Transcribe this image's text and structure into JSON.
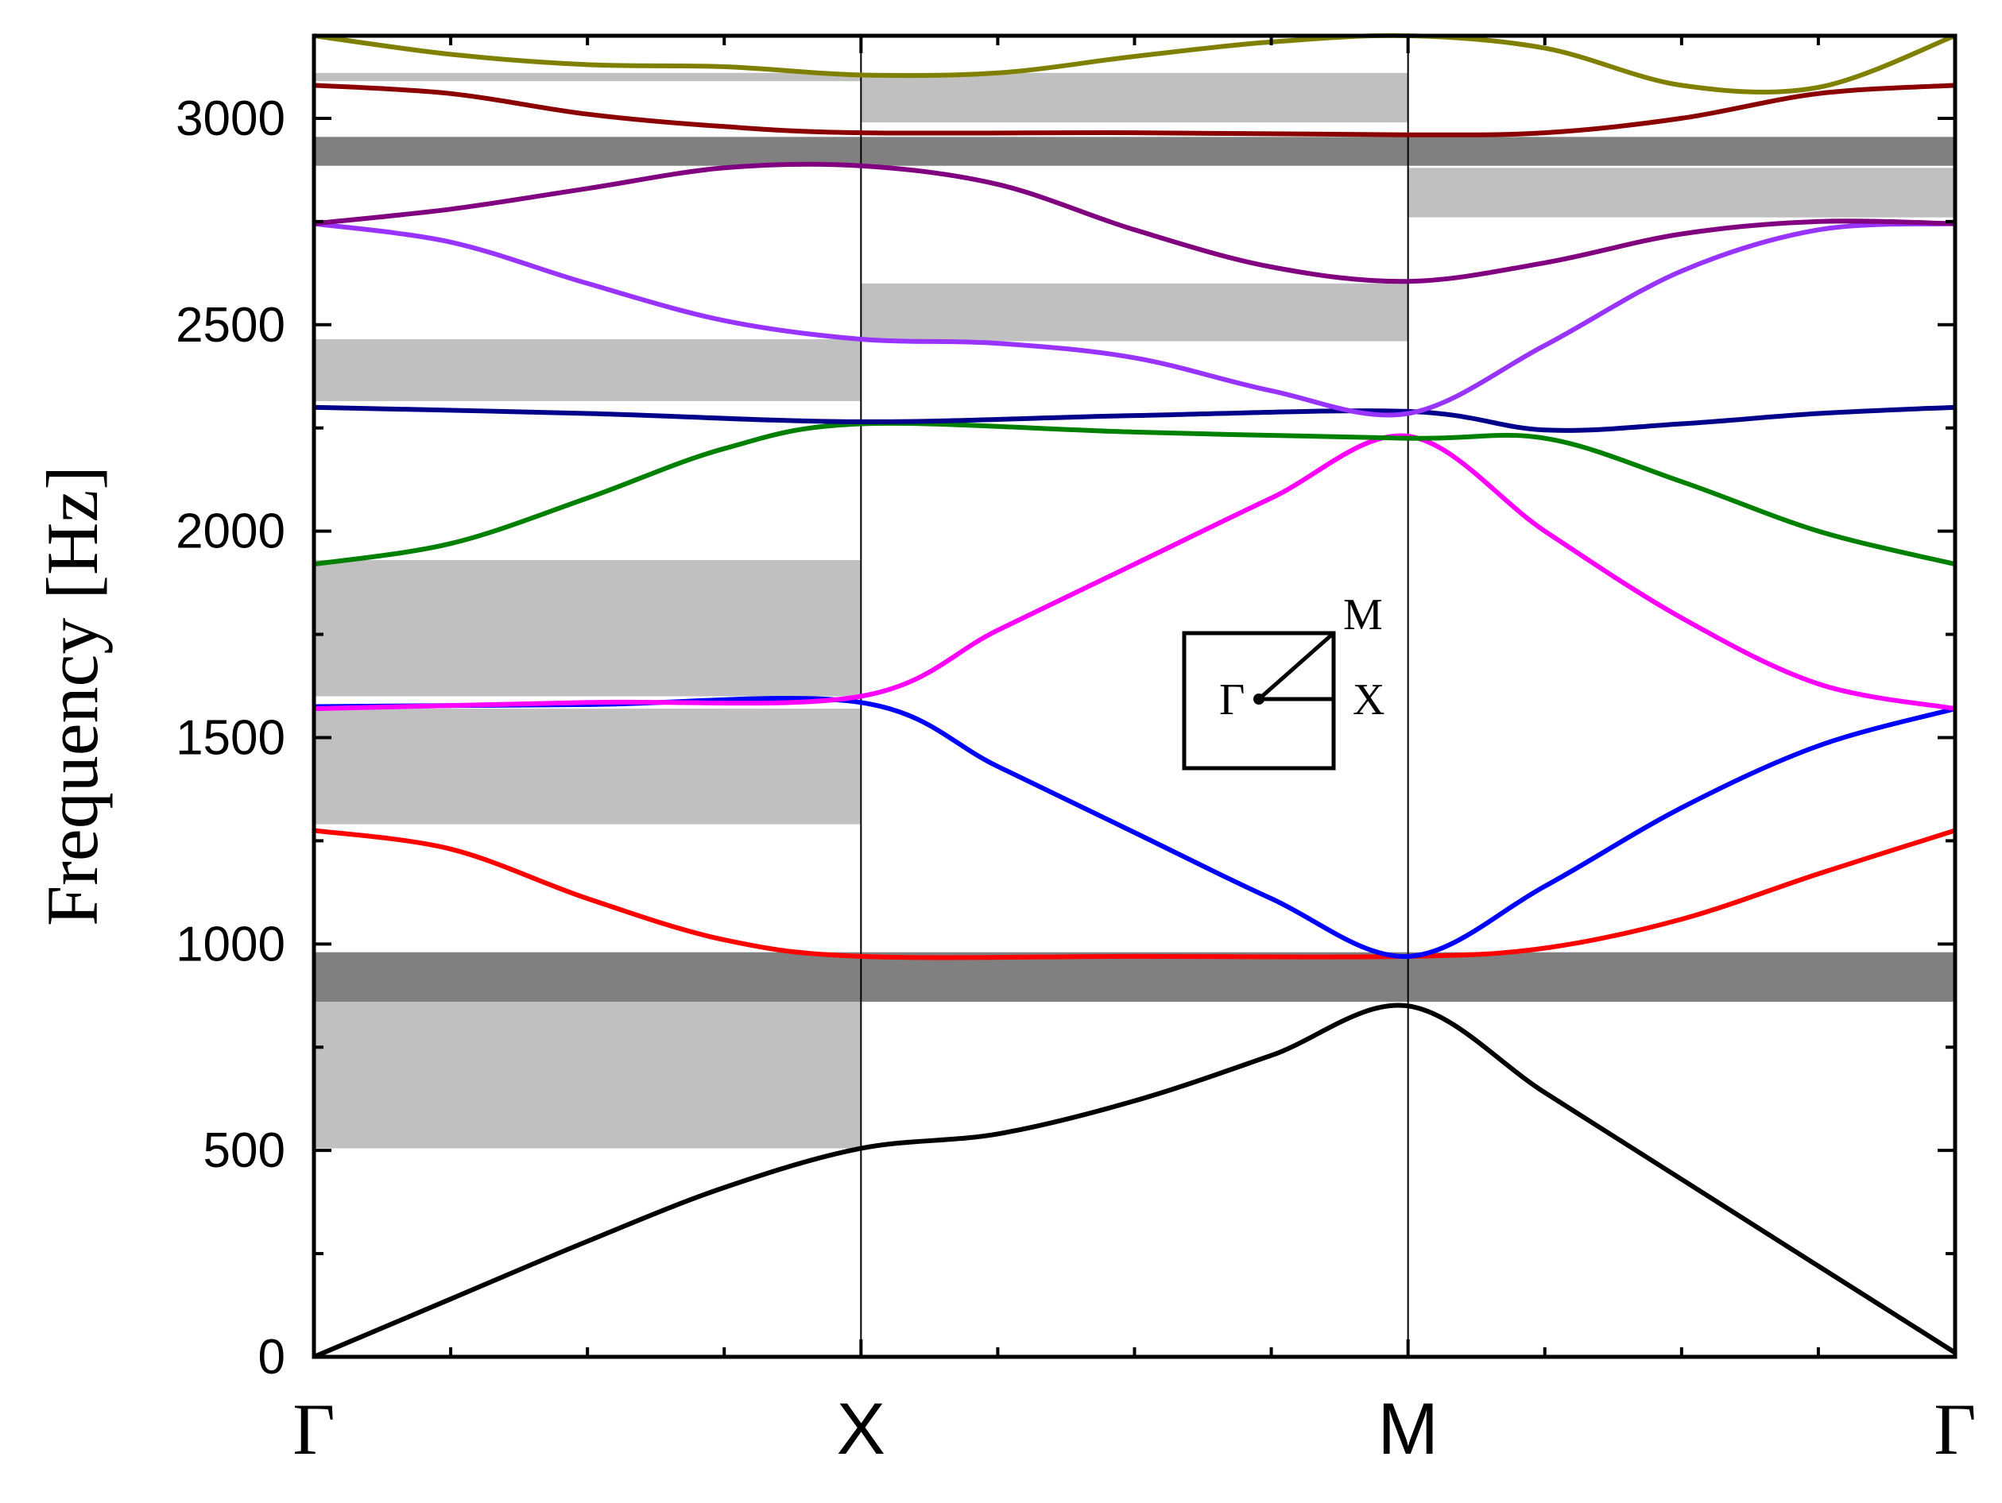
{
  "chart_data": {
    "type": "line",
    "title": "",
    "xlabel": "",
    "ylabel": "Frequency [Hz]",
    "ylim": [
      0,
      3200
    ],
    "yticks": [
      0,
      500,
      1000,
      1500,
      2000,
      2500,
      3000
    ],
    "ytick_labels": [
      "0",
      "500",
      "1000",
      "1500",
      "2000",
      "2500",
      "3000"
    ],
    "x_points": [
      "Γ",
      "X",
      "M",
      "Γ"
    ],
    "xlim": [
      0,
      3
    ],
    "grid": false,
    "legend": "none",
    "band_gaps": [
      {
        "name": "light",
        "x": [
          0,
          1
        ],
        "y": [
          505,
          860
        ],
        "color": "#c0c0c0"
      },
      {
        "name": "light",
        "x": [
          0,
          1
        ],
        "y": [
          1290,
          1570
        ],
        "color": "#c0c0c0"
      },
      {
        "name": "light",
        "x": [
          0,
          1
        ],
        "y": [
          1600,
          1930
        ],
        "color": "#c0c0c0"
      },
      {
        "name": "light",
        "x": [
          0,
          1
        ],
        "y": [
          2315,
          2465
        ],
        "color": "#c0c0c0"
      },
      {
        "name": "light",
        "x": [
          0,
          1
        ],
        "y": [
          3090,
          3110
        ],
        "color": "#c0c0c0"
      },
      {
        "name": "light",
        "x": [
          1,
          2
        ],
        "y": [
          2460,
          2600
        ],
        "color": "#c0c0c0"
      },
      {
        "name": "light",
        "x": [
          1,
          2
        ],
        "y": [
          2990,
          3110
        ],
        "color": "#c0c0c0"
      },
      {
        "name": "light",
        "x": [
          2,
          3
        ],
        "y": [
          2760,
          2880
        ],
        "color": "#c0c0c0"
      },
      {
        "name": "complete",
        "x": [
          0,
          3
        ],
        "y": [
          860,
          980
        ],
        "color": "#808080"
      },
      {
        "name": "complete",
        "x": [
          0,
          3
        ],
        "y": [
          2885,
          2955
        ],
        "color": "#808080"
      }
    ],
    "series": [
      {
        "color": "#000000",
        "x": [
          0,
          0.25,
          0.5,
          0.75,
          1,
          1.25,
          1.5,
          1.75,
          2,
          2.25,
          2.5,
          2.75,
          3
        ],
        "values": [
          0,
          140,
          280,
          410,
          505,
          540,
          620,
          730,
          850,
          640,
          430,
          220,
          10
        ]
      },
      {
        "color": "#ff0000",
        "x": [
          0,
          0.25,
          0.5,
          0.75,
          1,
          1.5,
          2,
          2.25,
          2.5,
          2.75,
          3
        ],
        "values": [
          1275,
          1230,
          1110,
          1010,
          970,
          970,
          970,
          990,
          1060,
          1170,
          1275
        ]
      },
      {
        "color": "#0000ff",
        "x": [
          0,
          0.5,
          1,
          1.25,
          1.5,
          1.75,
          2,
          2.25,
          2.5,
          2.75,
          3
        ],
        "values": [
          1575,
          1580,
          1585,
          1430,
          1270,
          1110,
          970,
          1140,
          1330,
          1480,
          1570
        ]
      },
      {
        "color": "#ff00ff",
        "x": [
          0,
          0.5,
          1,
          1.25,
          1.5,
          1.75,
          2,
          2.25,
          2.5,
          2.75,
          3
        ],
        "values": [
          1570,
          1585,
          1600,
          1760,
          1920,
          2080,
          2230,
          2000,
          1790,
          1630,
          1570
        ]
      },
      {
        "color": "#008000",
        "x": [
          0,
          0.25,
          0.5,
          0.75,
          1,
          1.5,
          2,
          2.25,
          2.5,
          2.75,
          3
        ],
        "values": [
          1920,
          1970,
          2080,
          2200,
          2260,
          2240,
          2225,
          2225,
          2120,
          2000,
          1920
        ]
      },
      {
        "color": "#00008b",
        "x": [
          0,
          0.5,
          1,
          1.5,
          2,
          2.25,
          2.5,
          2.75,
          3
        ],
        "values": [
          2300,
          2285,
          2265,
          2280,
          2290,
          2245,
          2260,
          2285,
          2300
        ]
      },
      {
        "color": "#9933ff",
        "x": [
          0,
          0.25,
          0.5,
          0.75,
          1,
          1.25,
          1.5,
          1.75,
          2,
          2.25,
          2.5,
          2.75,
          3
        ],
        "values": [
          2745,
          2700,
          2600,
          2510,
          2465,
          2455,
          2420,
          2340,
          2285,
          2450,
          2630,
          2730,
          2745
        ]
      },
      {
        "color": "#800080",
        "x": [
          0,
          0.25,
          0.5,
          0.75,
          1,
          1.25,
          1.5,
          1.75,
          2,
          2.25,
          2.5,
          2.75,
          3
        ],
        "values": [
          2745,
          2780,
          2830,
          2880,
          2885,
          2840,
          2730,
          2640,
          2605,
          2650,
          2720,
          2750,
          2745
        ]
      },
      {
        "color": "#8b0000",
        "x": [
          0,
          0.25,
          0.5,
          0.75,
          1,
          1.5,
          2,
          2.25,
          2.5,
          2.75,
          3
        ],
        "values": [
          3080,
          3060,
          3010,
          2980,
          2965,
          2965,
          2960,
          2965,
          3000,
          3060,
          3080
        ]
      },
      {
        "color": "#808000",
        "x": [
          0,
          0.25,
          0.5,
          0.75,
          1,
          1.25,
          1.5,
          1.75,
          2,
          2.25,
          2.5,
          2.75,
          3
        ],
        "values": [
          3200,
          3155,
          3130,
          3125,
          3105,
          3110,
          3150,
          3185,
          3200,
          3170,
          3080,
          3075,
          3200
        ]
      }
    ],
    "inset": {
      "labels": {
        "gamma": "Γ",
        "x": "X",
        "m": "M"
      }
    }
  }
}
